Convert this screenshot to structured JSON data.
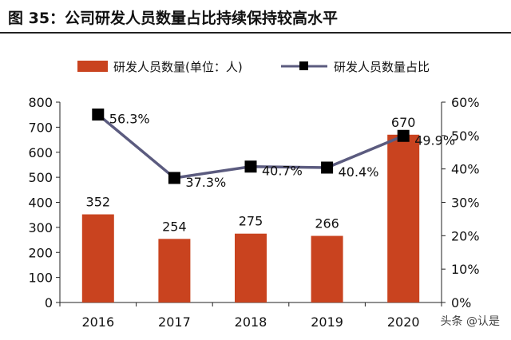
{
  "figure": {
    "title": "图 35：公司研发人员数量占比持续保持较高水平",
    "watermark": "头条 @认是"
  },
  "colors": {
    "bar": "#c9431f",
    "line": "#5b5b7f",
    "marker": "#000000",
    "axis": "#222222"
  },
  "chart_data": {
    "type": "bar+line",
    "categories": [
      "2016",
      "2017",
      "2018",
      "2019",
      "2020"
    ],
    "series": [
      {
        "name": "研发人员数量(单位：人)",
        "type": "bar",
        "axis": "left",
        "values": [
          352,
          254,
          275,
          266,
          670
        ],
        "data_labels": [
          "352",
          "254",
          "275",
          "266",
          "670"
        ]
      },
      {
        "name": "研发人员数量占比",
        "type": "line",
        "axis": "right",
        "values": [
          0.563,
          0.373,
          0.407,
          0.404,
          0.499
        ],
        "data_labels": [
          "56.3%",
          "37.3%",
          "40.7%",
          "40.4%",
          "49.9%"
        ]
      }
    ],
    "y_left": {
      "min": 0,
      "max": 800,
      "ticks": [
        "0",
        "100",
        "200",
        "300",
        "400",
        "500",
        "600",
        "700",
        "800"
      ]
    },
    "y_right": {
      "min": 0,
      "max": 0.6,
      "ticks": [
        "0%",
        "10%",
        "20%",
        "30%",
        "40%",
        "50%",
        "60%"
      ]
    },
    "legend_position": "top",
    "grid": false
  }
}
